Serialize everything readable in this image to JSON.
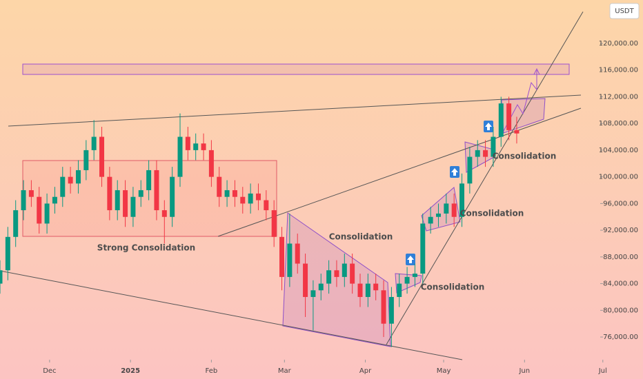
{
  "chart_data": {
    "type": "candlestick",
    "y_axis_label": "USDT",
    "up_color": "#089981",
    "down_color": "#f23645",
    "x": [
      -19,
      -16,
      -13,
      -10,
      -7,
      -4,
      -1,
      2,
      5,
      8,
      11,
      14,
      17,
      20,
      23,
      26,
      29,
      32,
      35,
      38,
      41,
      44,
      47,
      50,
      53,
      56,
      59,
      62,
      65,
      68,
      71,
      74,
      77,
      80,
      83,
      86,
      89,
      92,
      95,
      98,
      101,
      104,
      107,
      110,
      113,
      116,
      119,
      122,
      125,
      128,
      131,
      134,
      137,
      140,
      143,
      146,
      149,
      152,
      155,
      158,
      161,
      164,
      167,
      170,
      173,
      176,
      179
    ],
    "open": [
      84000,
      86000,
      91000,
      95000,
      98000,
      97000,
      93000,
      96000,
      97000,
      100000,
      99000,
      101000,
      104000,
      106000,
      100000,
      95000,
      98000,
      94000,
      97000,
      98000,
      101000,
      95000,
      94000,
      100000,
      106000,
      104000,
      105000,
      104000,
      100000,
      97000,
      98000,
      97000,
      96000,
      97500,
      96500,
      95000,
      91000,
      85000,
      90000,
      87000,
      82000,
      83000,
      84000,
      86000,
      85000,
      87000,
      84000,
      82000,
      84000,
      83000,
      78000,
      82000,
      84000,
      85000,
      85500,
      93000,
      94000,
      94500,
      96000,
      94000,
      99000,
      103000,
      104000,
      103000,
      106000,
      111000,
      107000
    ],
    "high": [
      87500,
      92500,
      96500,
      99500,
      99500,
      98500,
      97500,
      98500,
      101500,
      101500,
      102500,
      105500,
      108500,
      107500,
      101500,
      99500,
      99500,
      98500,
      99500,
      102500,
      102500,
      96500,
      101500,
      109500,
      107500,
      106500,
      106500,
      105500,
      101500,
      99500,
      99500,
      98500,
      99000,
      99000,
      98000,
      96500,
      92500,
      94500,
      91500,
      88500,
      84500,
      85500,
      87500,
      87500,
      88500,
      88500,
      85500,
      85500,
      85500,
      84500,
      83500,
      85500,
      86500,
      87000,
      94500,
      95500,
      96000,
      97500,
      97500,
      100500,
      104500,
      105500,
      105500,
      107500,
      112000,
      112000,
      109000
    ],
    "low": [
      82500,
      84500,
      89500,
      93500,
      95500,
      91500,
      91500,
      94500,
      95500,
      97500,
      97500,
      99500,
      102500,
      98500,
      93500,
      93500,
      92500,
      92500,
      95500,
      96500,
      93500,
      90000,
      92500,
      98500,
      102500,
      102500,
      102500,
      98500,
      95500,
      95500,
      95500,
      94500,
      94500,
      95000,
      93500,
      89500,
      83000,
      83500,
      85500,
      79000,
      77000,
      81500,
      82500,
      83500,
      83500,
      82500,
      80500,
      80500,
      81500,
      76000,
      74500,
      80500,
      82500,
      83500,
      84000,
      91500,
      92500,
      93000,
      92500,
      92500,
      97500,
      101500,
      101500,
      101500,
      104500,
      105500,
      105000
    ],
    "close": [
      86000,
      91000,
      95000,
      98000,
      97000,
      93000,
      96000,
      97000,
      100000,
      99000,
      101000,
      104000,
      106000,
      100000,
      95000,
      98000,
      94000,
      97000,
      98000,
      101000,
      95000,
      94000,
      100000,
      106000,
      104000,
      105000,
      104000,
      100000,
      97000,
      98000,
      97000,
      96000,
      97500,
      96500,
      95000,
      91000,
      85000,
      90000,
      87000,
      82000,
      83000,
      84000,
      86000,
      85000,
      87000,
      84000,
      82000,
      84000,
      83000,
      78000,
      82000,
      84000,
      85000,
      85500,
      93000,
      94000,
      94500,
      96000,
      94000,
      99000,
      103000,
      104000,
      103000,
      106000,
      111000,
      107000,
      106500
    ],
    "xlim": [
      -19,
      211
    ],
    "ylim": [
      72600,
      126500
    ],
    "xticks": [
      {
        "value": 0,
        "label": "Dec"
      },
      {
        "value": 31,
        "label": "2025"
      },
      {
        "value": 62,
        "label": "Feb"
      },
      {
        "value": 90,
        "label": "Mar"
      },
      {
        "value": 121,
        "label": "Apr"
      },
      {
        "value": 151,
        "label": "May"
      },
      {
        "value": 182,
        "label": "Jun"
      },
      {
        "value": 212,
        "label": "Jul"
      }
    ],
    "yticks": [
      {
        "value": 76000,
        "label": "76,000.00"
      },
      {
        "value": 80000,
        "label": "80,000.00"
      },
      {
        "value": 84000,
        "label": "84,000.00"
      },
      {
        "value": 88000,
        "label": "88,000.00"
      },
      {
        "value": 92000,
        "label": "92,000.00"
      },
      {
        "value": 96000,
        "label": "96,000.00"
      },
      {
        "value": 100000,
        "label": "100,000.00"
      },
      {
        "value": 104000,
        "label": "104,000.00"
      },
      {
        "value": 108000,
        "label": "108,000.00"
      },
      {
        "value": 112000,
        "label": "112,000.00"
      },
      {
        "value": 116000,
        "label": "116,000.00"
      },
      {
        "value": 120000,
        "label": "120,000.00"
      }
    ],
    "annotations": [
      "Strong Consolidation",
      "Consolidation",
      "Consolidation",
      "Consolidation",
      "Consolidation"
    ]
  }
}
